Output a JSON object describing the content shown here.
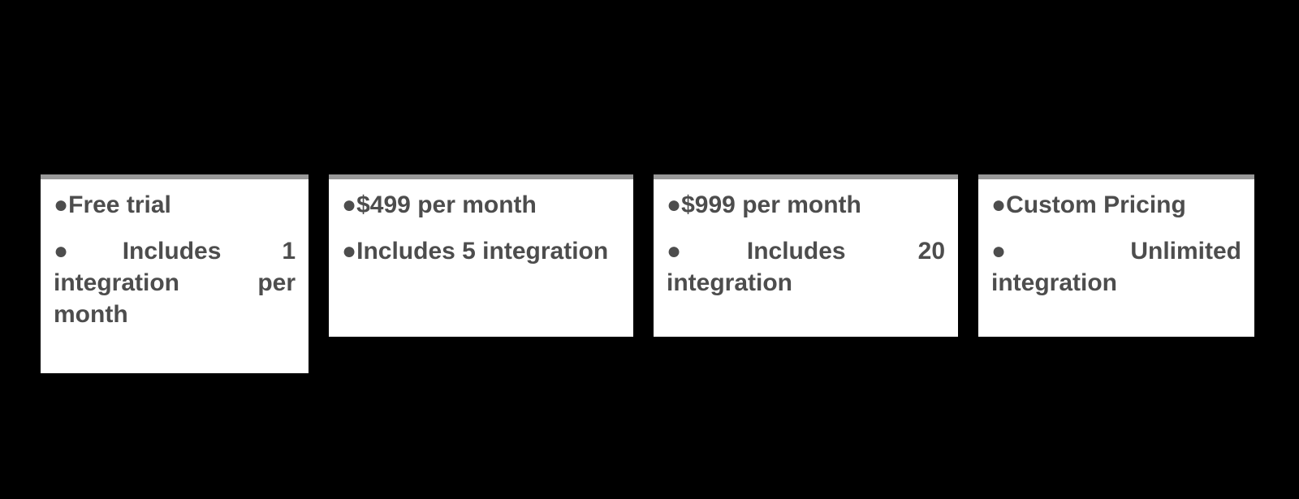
{
  "infographic_type": "pricing-comparison",
  "background_color": "#000000",
  "card_background_color": "#ffffff",
  "card_top_border_color": "#999999",
  "text_color": "#4d4d4d",
  "bullet_marker": "●",
  "font_size_pt": 22,
  "font_weight": "bold",
  "cards": [
    {
      "id": "tier-1",
      "items": [
        "Free trial",
        "Includes 1 integration per month"
      ]
    },
    {
      "id": "tier-2",
      "items": [
        "$499 per month",
        "Includes 5 integration"
      ]
    },
    {
      "id": "tier-3",
      "items": [
        "$999 per month",
        "Includes 20 integration"
      ]
    },
    {
      "id": "tier-4",
      "items": [
        "Custom Pricing",
        "Unlimited integration"
      ]
    }
  ]
}
